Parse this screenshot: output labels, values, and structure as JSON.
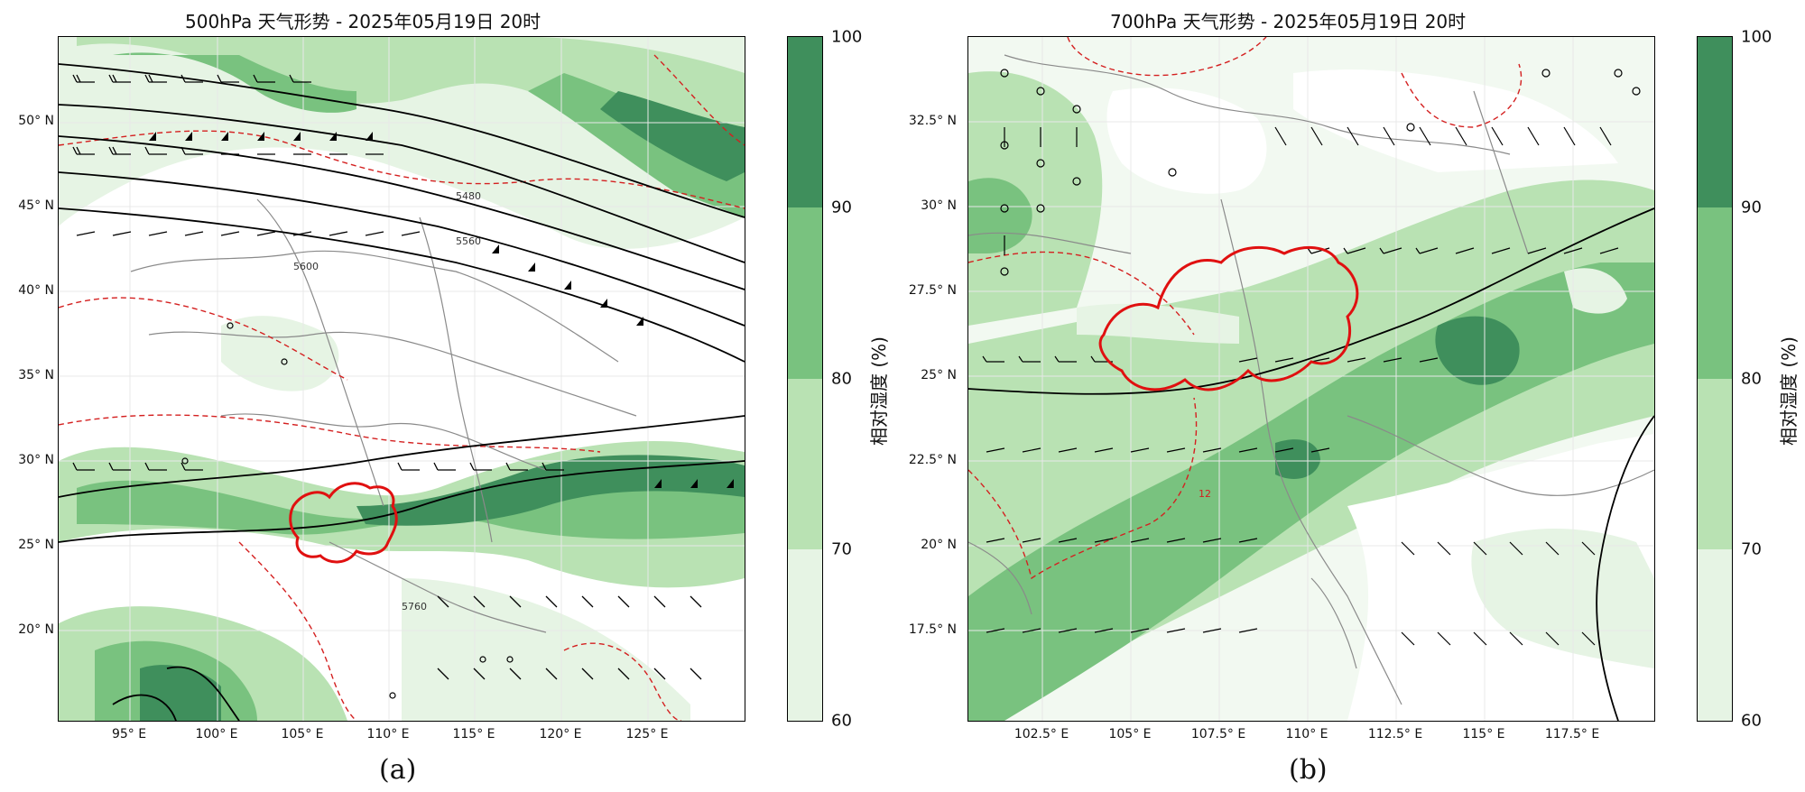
{
  "panels": [
    {
      "title": "500hPa 天气形势 - 2025年05月19日 20时",
      "lat_labels": [
        "50° N",
        "45° N",
        "40° N",
        "35° N",
        "30° N",
        "25° N",
        "20° N"
      ],
      "lon_labels": [
        "95° E",
        "100° E",
        "105° E",
        "110° E",
        "115° E",
        "120° E",
        "125° E"
      ],
      "contour_labels": [
        "5480",
        "5560",
        "5600",
        "5760"
      ],
      "colorbar": {
        "label": "相对湿度 (%)",
        "ticks": [
          "100",
          "90",
          "80",
          "70",
          "60"
        ]
      },
      "sublabel": "(a)"
    },
    {
      "title": "700hPa 天气形势 - 2025年05月19日 20时",
      "lat_labels": [
        "32.5° N",
        "30° N",
        "27.5° N",
        "25° N",
        "22.5° N",
        "20° N",
        "17.5° N"
      ],
      "lon_labels": [
        "102.5° E",
        "105° E",
        "107.5° E",
        "110° E",
        "112.5° E",
        "115° E",
        "117.5° E"
      ],
      "contour_labels": [
        "12"
      ],
      "colorbar": {
        "label": "相对湿度 (%)",
        "ticks": [
          "100",
          "90",
          "80",
          "70",
          "60"
        ]
      },
      "sublabel": "(b)"
    }
  ],
  "colors": {
    "rh_60_70": "#e6f4e4",
    "rh_70_80": "#b9e2b3",
    "rh_80_90": "#79c27f",
    "rh_90_100": "#3f8f5c",
    "contour": "#000000",
    "temp_contour": "#d42020",
    "region_outline": "#e01010",
    "boundary": "#8a8a8a"
  }
}
